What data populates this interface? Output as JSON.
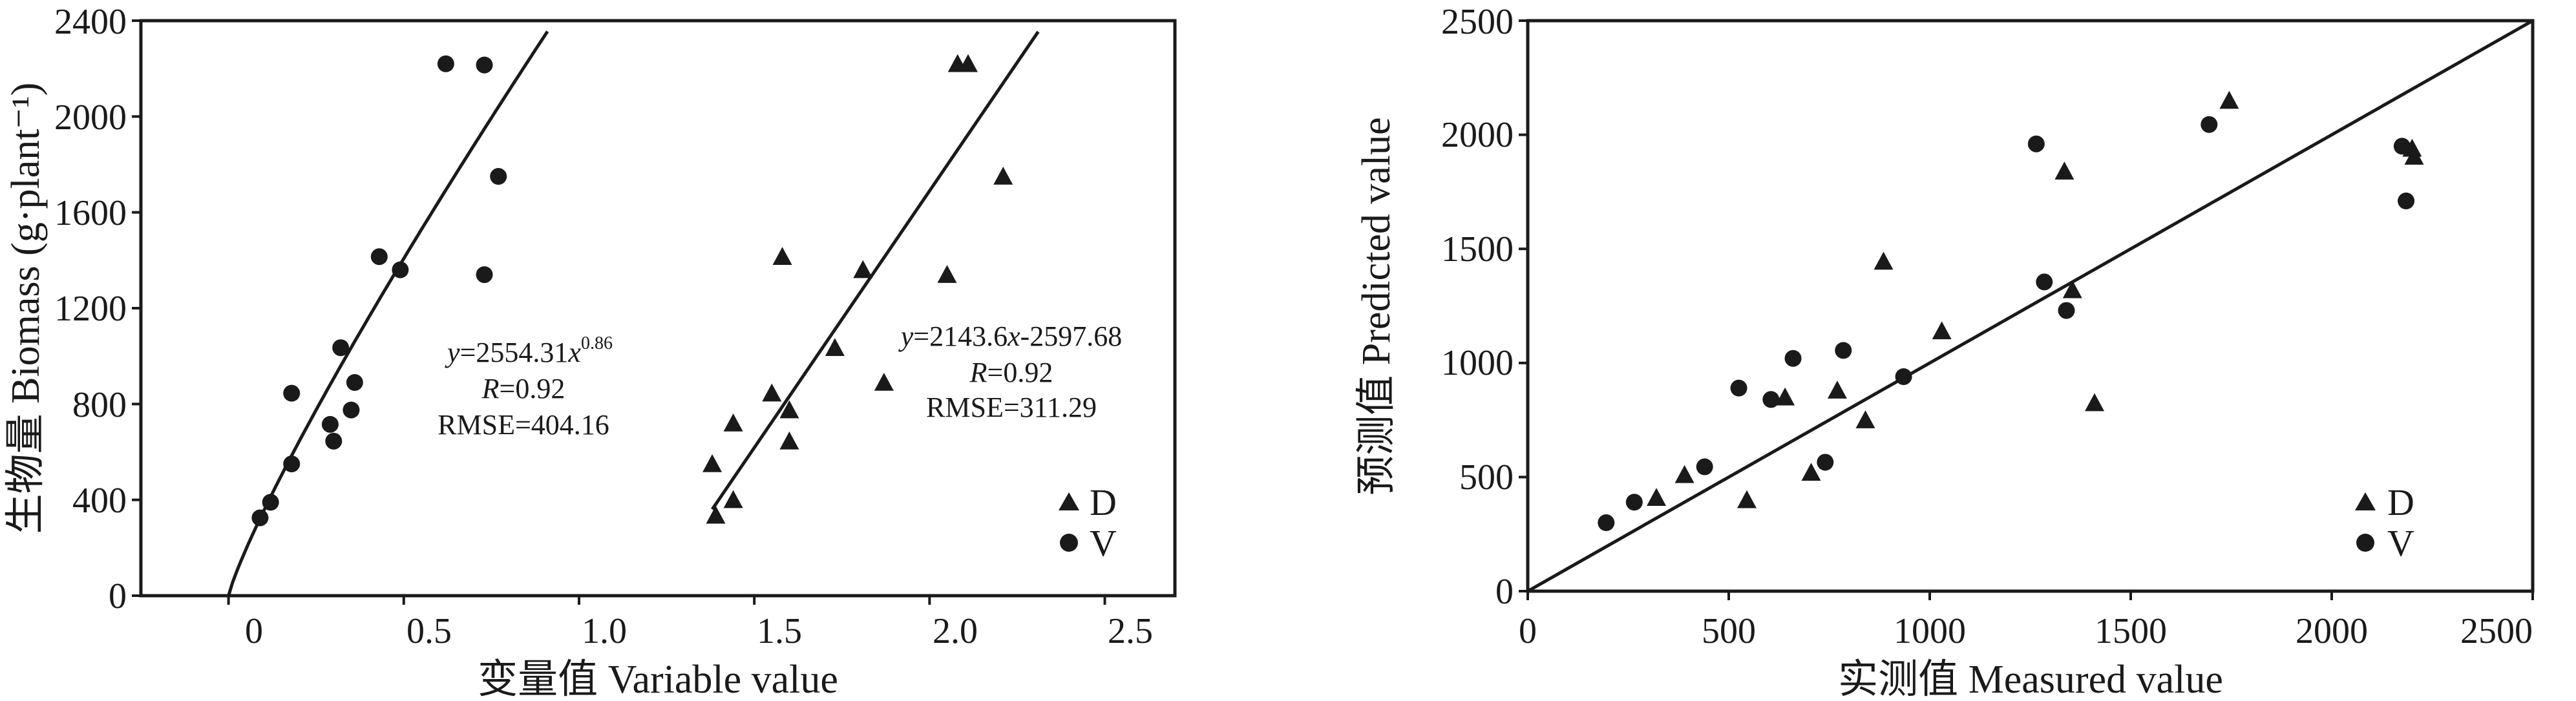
{
  "chart_data": [
    {
      "type": "scatter",
      "xlabel": "变量值 Variable value",
      "ylabel": "生物量 Biomass (g·plant⁻¹)",
      "xlim": [
        -0.25,
        2.7
      ],
      "ylim": [
        0,
        2400
      ],
      "xticks": [
        0,
        0.5,
        1.0,
        1.5,
        2.0,
        2.5
      ],
      "xtick_labels": [
        "0",
        "0.5",
        "1.0",
        "1.5",
        "2.0",
        "2.5"
      ],
      "yticks": [
        0,
        400,
        800,
        1200,
        1600,
        2000,
        2400
      ],
      "ytick_labels": [
        "0",
        "400",
        "800",
        "1200",
        "1600",
        "2000",
        "2400"
      ],
      "legend": {
        "position": "bottom-right",
        "entries": [
          {
            "label": "D",
            "marker": "triangle"
          },
          {
            "label": "V",
            "marker": "circle"
          }
        ]
      },
      "series": [
        {
          "name": "V",
          "marker": "circle",
          "points": [
            [
              0.09,
              325
            ],
            [
              0.12,
              390
            ],
            [
              0.18,
              550
            ],
            [
              0.18,
              845
            ],
            [
              0.29,
              715
            ],
            [
              0.3,
              645
            ],
            [
              0.32,
              1035
            ],
            [
              0.35,
              775
            ],
            [
              0.36,
              890
            ],
            [
              0.43,
              1415
            ],
            [
              0.49,
              1360
            ],
            [
              0.62,
              2220
            ],
            [
              0.73,
              2215
            ],
            [
              0.73,
              1340
            ],
            [
              0.77,
              1750
            ]
          ]
        },
        {
          "name": "D",
          "marker": "triangle",
          "points": [
            [
              1.38,
              550
            ],
            [
              1.39,
              335
            ],
            [
              1.44,
              720
            ],
            [
              1.44,
              400
            ],
            [
              1.55,
              845
            ],
            [
              1.58,
              1415
            ],
            [
              1.6,
              775
            ],
            [
              1.6,
              645
            ],
            [
              1.73,
              1035
            ],
            [
              1.81,
              1360
            ],
            [
              1.87,
              890
            ],
            [
              2.05,
              1340
            ],
            [
              2.08,
              2220
            ],
            [
              2.11,
              2220
            ],
            [
              2.21,
              1750
            ]
          ]
        }
      ],
      "fits": [
        {
          "equation": {
            "y": "y",
            "coef": "=2554.31",
            "x": "x",
            "exp": "0.86"
          },
          "r_text": "=0.92",
          "rmse_text": "RMSE=404.16",
          "model": "power",
          "a": 2554.31,
          "b": 0.86,
          "x_range": [
            0,
            0.91
          ]
        },
        {
          "equation": {
            "y": "y",
            "coef": "=2143.6",
            "x": "x",
            "rest": "-2597.68"
          },
          "r_text": "=0.92",
          "rmse_text": "RMSE=311.29",
          "model": "linear",
          "a": 2143.6,
          "b": -2597.68,
          "x_range": [
            1.38,
            2.31
          ]
        }
      ],
      "r_symbol": "R"
    },
    {
      "type": "scatter",
      "xlabel": "实测值 Measured value",
      "ylabel": "预测值 Predicted value",
      "xlim": [
        0,
        2500
      ],
      "ylim": [
        0,
        2500
      ],
      "xticks": [
        0,
        500,
        1000,
        1500,
        2000,
        2500
      ],
      "xtick_labels": [
        "0",
        "500",
        "1000",
        "1500",
        "2000",
        "2500"
      ],
      "yticks": [
        0,
        500,
        1000,
        1500,
        2000,
        2500
      ],
      "ytick_labels": [
        "0",
        "500",
        "1000",
        "1500",
        "2000",
        "2500"
      ],
      "reference_line": "1:1",
      "legend": {
        "position": "bottom-right",
        "entries": [
          {
            "label": "D",
            "marker": "triangle"
          },
          {
            "label": "V",
            "marker": "circle"
          }
        ]
      },
      "series": [
        {
          "name": "V",
          "marker": "circle",
          "points": [
            [
              195,
              300
            ],
            [
              265,
              390
            ],
            [
              440,
              545
            ],
            [
              525,
              890
            ],
            [
              605,
              840
            ],
            [
              660,
              1020
            ],
            [
              740,
              565
            ],
            [
              785,
              1055
            ],
            [
              935,
              940
            ],
            [
              1265,
              1960
            ],
            [
              1285,
              1355
            ],
            [
              1340,
              1230
            ],
            [
              1695,
              2045
            ],
            [
              2175,
              1950
            ],
            [
              2185,
              1710
            ]
          ]
        },
        {
          "name": "D",
          "marker": "triangle",
          "points": [
            [
              320,
              410
            ],
            [
              390,
              510
            ],
            [
              545,
              400
            ],
            [
              640,
              850
            ],
            [
              705,
              520
            ],
            [
              770,
              880
            ],
            [
              840,
              750
            ],
            [
              885,
              1445
            ],
            [
              1030,
              1140
            ],
            [
              1335,
              1840
            ],
            [
              1355,
              1320
            ],
            [
              1410,
              825
            ],
            [
              1745,
              2150
            ],
            [
              2200,
              1940
            ],
            [
              2205,
              1905
            ]
          ]
        }
      ]
    }
  ]
}
